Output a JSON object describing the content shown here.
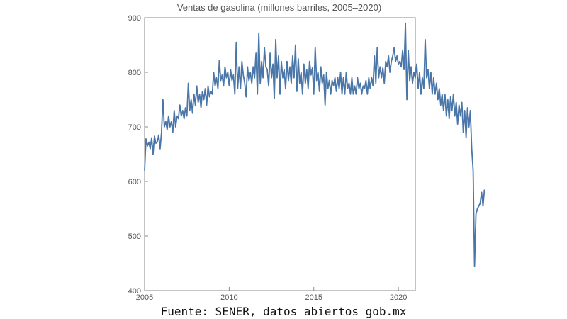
{
  "chart_data": {
    "type": "line",
    "title": "Ventas de gasolina (millones barriles, 2005–2020)",
    "xlabel": "",
    "ylabel": "",
    "xlim": [
      2005,
      2021
    ],
    "ylim": [
      400,
      900
    ],
    "x_ticks": [
      2005,
      2010,
      2015,
      2020
    ],
    "y_ticks": [
      400,
      500,
      600,
      700,
      800,
      900
    ],
    "grid": false,
    "line_color": "#4a76a8",
    "series": [
      {
        "x_start": 2005.0,
        "x_step_months": 1,
        "values": [
          620,
          678,
          665,
          672,
          660,
          680,
          650,
          683,
          670,
          672,
          685,
          660,
          690,
          750,
          700,
          710,
          695,
          720,
          700,
          710,
          690,
          730,
          700,
          720,
          715,
          740,
          720,
          730,
          715,
          735,
          720,
          780,
          730,
          750,
          725,
          760,
          740,
          775,
          745,
          760,
          735,
          765,
          750,
          770,
          740,
          775,
          755,
          765,
          760,
          800,
          775,
          790,
          770,
          822,
          785,
          795,
          775,
          810,
          790,
          800,
          775,
          805,
          785,
          795,
          760,
          855,
          770,
          810,
          770,
          820,
          795,
          780,
          755,
          810,
          785,
          800,
          780,
          810,
          790,
          835,
          760,
          872,
          780,
          820,
          790,
          845,
          810,
          805,
          775,
          835,
          790,
          815,
          752,
          860,
          790,
          830,
          760,
          820,
          790,
          805,
          770,
          820,
          785,
          810,
          780,
          830,
          790,
          850,
          765,
          825,
          780,
          800,
          760,
          815,
          780,
          805,
          770,
          820,
          795,
          808,
          760,
          845,
          785,
          800,
          765,
          810,
          780,
          795,
          740,
          800,
          770,
          785,
          760,
          785,
          775,
          790,
          765,
          790,
          770,
          800,
          760,
          790,
          760,
          800,
          770,
          780,
          760,
          790,
          760,
          775,
          760,
          790,
          770,
          780,
          760,
          775,
          770,
          785,
          760,
          790,
          770,
          790,
          775,
          830,
          780,
          845,
          790,
          810,
          790,
          808,
          780,
          820,
          810,
          830,
          800,
          820,
          830,
          845,
          820,
          830,
          815,
          820,
          810,
          840,
          805,
          890,
          750,
          840,
          785,
          810,
          780,
          800,
          790,
          815,
          770,
          800,
          760,
          790,
          770,
          860,
          790,
          805,
          770,
          800,
          760,
          790,
          760,
          780,
          750,
          770,
          740,
          760,
          730,
          760,
          720,
          750,
          715,
          755,
          730,
          760,
          720,
          745,
          705,
          740,
          720,
          745,
          690,
          730,
          680,
          735,
          700,
          730,
          660,
          620,
          445,
          540,
          550,
          555,
          560,
          580,
          555,
          585
        ]
      }
    ]
  },
  "source_note": "Fuente: SENER, datos abiertos gob.mx"
}
